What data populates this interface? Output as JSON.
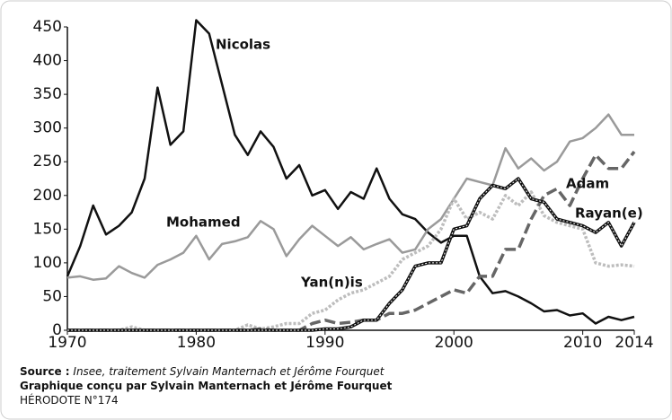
{
  "chart_data": {
    "type": "line",
    "x": [
      1970,
      1971,
      1972,
      1973,
      1974,
      1975,
      1976,
      1977,
      1978,
      1979,
      1980,
      1981,
      1982,
      1983,
      1984,
      1985,
      1986,
      1987,
      1988,
      1989,
      1990,
      1991,
      1992,
      1993,
      1994,
      1995,
      1996,
      1997,
      1998,
      1999,
      2000,
      2001,
      2002,
      2003,
      2004,
      2005,
      2006,
      2007,
      2008,
      2009,
      2010,
      2011,
      2012,
      2013,
      2014
    ],
    "xlim": [
      1970,
      2014
    ],
    "xticks": [
      1970,
      1980,
      1990,
      2000,
      2010,
      2014
    ],
    "ylim": [
      0,
      450
    ],
    "yticks": [
      0,
      50,
      100,
      150,
      200,
      250,
      300,
      350,
      400,
      450
    ],
    "series": [
      {
        "name": "Nicolas",
        "color": "#111111",
        "style": "solid",
        "values": [
          80,
          125,
          185,
          142,
          155,
          175,
          225,
          360,
          275,
          295,
          460,
          440,
          365,
          290,
          260,
          295,
          272,
          225,
          245,
          200,
          208,
          180,
          205,
          195,
          240,
          195,
          172,
          165,
          145,
          130,
          140,
          140,
          80,
          55,
          58,
          50,
          40,
          28,
          30,
          22,
          25,
          10,
          20,
          15,
          20
        ]
      },
      {
        "name": "Mohamed",
        "color": "#9a9a9a",
        "style": "solid",
        "values": [
          78,
          80,
          75,
          77,
          95,
          85,
          78,
          97,
          105,
          115,
          140,
          105,
          128,
          132,
          138,
          162,
          150,
          110,
          135,
          155,
          140,
          125,
          138,
          120,
          128,
          135,
          115,
          120,
          150,
          165,
          195,
          225,
          220,
          215,
          270,
          240,
          255,
          237,
          250,
          280,
          285,
          300,
          320,
          290,
          290
        ]
      },
      {
        "name": "Yan(n)is",
        "color": "#bdbdbd",
        "style": "dotted",
        "values": [
          0,
          0,
          0,
          0,
          0,
          5,
          0,
          0,
          0,
          0,
          0,
          0,
          0,
          0,
          8,
          2,
          5,
          10,
          10,
          25,
          30,
          45,
          55,
          60,
          70,
          80,
          105,
          115,
          125,
          150,
          195,
          165,
          175,
          165,
          200,
          185,
          205,
          170,
          160,
          155,
          150,
          100,
          95,
          97,
          95
        ]
      },
      {
        "name": "Adam",
        "color": "#666666",
        "style": "dashed",
        "values": [
          0,
          0,
          0,
          0,
          0,
          0,
          0,
          0,
          0,
          0,
          0,
          0,
          0,
          0,
          0,
          2,
          0,
          0,
          0,
          10,
          15,
          10,
          12,
          15,
          15,
          25,
          25,
          30,
          40,
          50,
          60,
          55,
          80,
          80,
          120,
          120,
          165,
          200,
          210,
          185,
          225,
          260,
          240,
          240,
          265
        ]
      },
      {
        "name": "Rayan(e)",
        "color": "#111111",
        "style": "double",
        "values": [
          0,
          0,
          0,
          0,
          0,
          0,
          0,
          0,
          0,
          0,
          0,
          0,
          0,
          0,
          0,
          0,
          0,
          0,
          0,
          0,
          2,
          2,
          5,
          15,
          15,
          40,
          60,
          95,
          100,
          100,
          150,
          155,
          195,
          215,
          210,
          225,
          195,
          190,
          165,
          160,
          155,
          145,
          160,
          125,
          160
        ]
      }
    ],
    "source_label": "Source :",
    "source_text": "Insee, traitement Sylvain Manternach et Jérôme Fourquet",
    "credit": "Graphique conçu par Sylvain Manternach et Jérôme Fourquet",
    "publication": "HÉRODOTE N°174"
  }
}
